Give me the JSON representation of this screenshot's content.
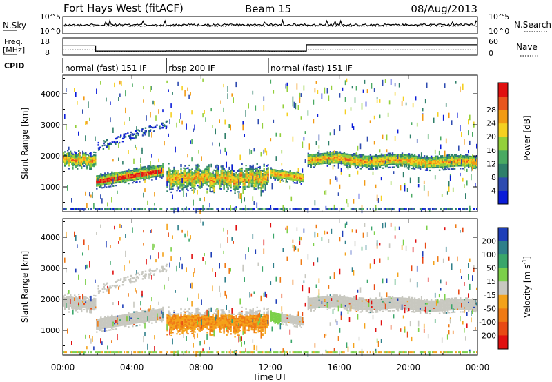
{
  "header": {
    "radar": "Fort Hays West (fitACF)",
    "beam": "Beam 15",
    "date": "08/Aug/2013"
  },
  "chart_data": [
    {
      "type": "line",
      "panel": "noise",
      "left_label": "N.Sky",
      "right_label": "N.Search",
      "left_ticks": [
        "10^5",
        "10^0"
      ],
      "right_ticks": [
        "10^5",
        "10^0"
      ],
      "xlim": [
        0,
        24
      ],
      "series": [
        {
          "name": "N.Sky",
          "style": "solid",
          "level": "about 10^3 throughout"
        },
        {
          "name": "N.Search",
          "style": "dotted",
          "level": "about 10^3 throughout"
        }
      ]
    },
    {
      "type": "line",
      "panel": "frequency",
      "left_label": "Freq.",
      "left_unit": "[MHz]",
      "right_label": "Nave",
      "left_ticks": [
        18,
        8
      ],
      "right_ticks": [
        60,
        0
      ],
      "freq_series": {
        "name": "Freq.",
        "style": "solid",
        "x": [
          0,
          1.9,
          1.9,
          14.1,
          14.1,
          24
        ],
        "y": [
          14.5,
          14.5,
          10.8,
          10.8,
          15.2,
          15.2
        ]
      },
      "nave_series": {
        "name": "Nave",
        "style": "dotted",
        "x": [
          0,
          1.9,
          1.9,
          6.0,
          6.0,
          11.9,
          11.9,
          14.1,
          14.1,
          24
        ],
        "y": [
          22,
          22,
          14,
          14,
          18,
          18,
          14,
          14,
          22,
          22
        ]
      }
    },
    {
      "type": "table",
      "panel": "cpid",
      "label": "CPID",
      "segments": [
        {
          "start": 0,
          "end": 6,
          "name": "normal (fast) 151 IF"
        },
        {
          "start": 6,
          "end": 11.9,
          "name": "rbsp 200 IF"
        },
        {
          "start": 11.9,
          "end": 24,
          "name": "normal (fast) 151 IF"
        }
      ]
    },
    {
      "type": "heatmap",
      "panel": "power",
      "ylabel": "Slant Range [km]",
      "yticks": [
        1000,
        2000,
        3000,
        4000
      ],
      "ylim": [
        200,
        4600
      ],
      "xlim": [
        0,
        24
      ],
      "colorbar": {
        "label": "Power [dB]",
        "ticks": [
          4,
          8,
          12,
          16,
          20,
          24,
          28
        ],
        "colors": [
          "#0a1cd8",
          "#2e4bb0",
          "#2f7f6a",
          "#4aaa62",
          "#93cf3a",
          "#f5d020",
          "#f29a12",
          "#e8561e",
          "#e01010"
        ]
      }
    },
    {
      "type": "heatmap",
      "panel": "velocity",
      "ylabel": "Slant Range [km]",
      "xlabel": "Time UT",
      "yticks": [
        1000,
        2000,
        3000,
        4000
      ],
      "ylim": [
        200,
        4600
      ],
      "xlim": [
        0,
        24
      ],
      "xticks": [
        "00:00",
        "04:00",
        "08:00",
        "12:00",
        "16:00",
        "20:00",
        "00:00"
      ],
      "colorbar": {
        "label": "Velocity [m s",
        "label_sup": "-1",
        "label_end": "]",
        "ticks": [
          200,
          100,
          50,
          15,
          -15,
          -50,
          -100,
          -200
        ],
        "colors": [
          "#1f3fb8",
          "#2f7f8a",
          "#3aa66a",
          "#7cd04a",
          "#c8c8c0",
          "#f4a21a",
          "#ef7a14",
          "#e84a14",
          "#e01010"
        ]
      }
    }
  ]
}
